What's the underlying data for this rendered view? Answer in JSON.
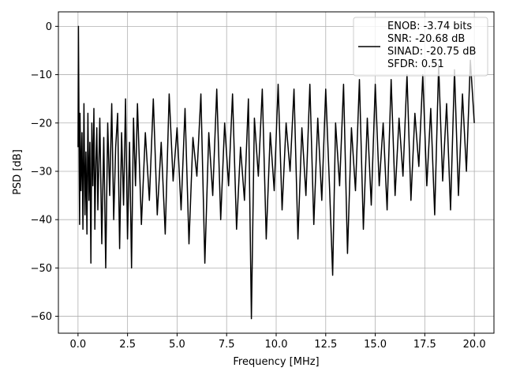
{
  "chart_data": {
    "type": "line",
    "xlabel": "Frequency [MHz]",
    "ylabel": "PSD [dB]",
    "xlim": [
      -0.99,
      20.99
    ],
    "ylim": [
      -63.5,
      3
    ],
    "x_ticks": [
      0.0,
      2.5,
      5.0,
      7.5,
      10.0,
      12.5,
      15.0,
      17.5,
      20.0
    ],
    "x_tick_labels": [
      "0.0",
      "2.5",
      "5.0",
      "7.5",
      "10.0",
      "12.5",
      "15.0",
      "17.5",
      "20.0"
    ],
    "y_ticks": [
      0,
      -10,
      -20,
      -30,
      -40,
      -50,
      -60
    ],
    "y_tick_labels": [
      "0",
      "−10",
      "−20",
      "−30",
      "−40",
      "−50",
      "−60"
    ],
    "grid": true,
    "legend_position": "top-right",
    "legend_entries": [
      "ENOB: -3.74 bits",
      "SNR: -20.68 dB",
      "SINAD: -20.75 dB",
      "SFDR: 0.51"
    ],
    "line_color": "#000000",
    "series": [
      {
        "x": [
          0,
          0.02,
          0.04,
          0.06,
          0.08,
          0.1,
          0.15,
          0.2,
          0.25,
          0.3,
          0.35,
          0.4,
          0.45,
          0.5,
          0.55,
          0.6,
          0.65,
          0.7,
          0.75,
          0.8,
          0.85,
          0.9,
          0.95,
          1.0,
          1.1,
          1.2,
          1.3,
          1.4,
          1.5,
          1.6,
          1.7,
          1.8,
          1.9,
          2.0,
          2.1,
          2.2,
          2.3,
          2.4,
          2.5,
          2.6,
          2.7,
          2.8,
          2.9,
          3.0,
          3.2,
          3.4,
          3.6,
          3.8,
          4.0,
          4.2,
          4.4,
          4.6,
          4.8,
          5.0,
          5.2,
          5.4,
          5.6,
          5.8,
          6.0,
          6.2,
          6.4,
          6.6,
          6.8,
          7.0,
          7.2,
          7.4,
          7.6,
          7.8,
          8.0,
          8.2,
          8.4,
          8.6,
          8.75,
          8.9,
          9.1,
          9.3,
          9.5,
          9.7,
          9.9,
          10.1,
          10.3,
          10.5,
          10.7,
          10.9,
          11.1,
          11.3,
          11.5,
          11.7,
          11.9,
          12.1,
          12.3,
          12.5,
          12.7,
          12.85,
          13.0,
          13.2,
          13.4,
          13.6,
          13.8,
          14.0,
          14.2,
          14.4,
          14.6,
          14.8,
          15.0,
          15.2,
          15.4,
          15.6,
          15.8,
          16.0,
          16.2,
          16.4,
          16.6,
          16.8,
          17.0,
          17.2,
          17.4,
          17.6,
          17.8,
          18.0,
          18.2,
          18.4,
          18.6,
          18.8,
          19.0,
          19.2,
          19.4,
          19.6,
          19.8,
          20.0
        ],
        "y": [
          -25,
          0,
          -14,
          -30,
          -41,
          -18,
          -34,
          -22,
          -42,
          -16,
          -39,
          -26,
          -43,
          -18,
          -36,
          -24,
          -49,
          -20,
          -33,
          -17,
          -42,
          -28,
          -21,
          -38,
          -19,
          -45,
          -23,
          -50,
          -20,
          -35,
          -16,
          -40,
          -25,
          -18,
          -46,
          -22,
          -37,
          -15,
          -44,
          -24,
          -50,
          -19,
          -33,
          -16,
          -41,
          -22,
          -36,
          -15,
          -39,
          -24,
          -43,
          -14,
          -32,
          -21,
          -38,
          -17,
          -45,
          -23,
          -31,
          -14,
          -49,
          -22,
          -35,
          -13,
          -40,
          -20,
          -33,
          -14,
          -42,
          -25,
          -36,
          -15,
          -60.5,
          -19,
          -31,
          -13,
          -44,
          -22,
          -34,
          -12,
          -38,
          -20,
          -30,
          -13,
          -44,
          -21,
          -35,
          -12,
          -41,
          -19,
          -36,
          -13,
          -34,
          -51.5,
          -20,
          -33,
          -12,
          -47,
          -21,
          -34,
          -11,
          -42,
          -19,
          -37,
          -12,
          -33,
          -20,
          -38,
          -11,
          -35,
          -19,
          -31,
          -10,
          -36,
          -18,
          -29,
          -10,
          -33,
          -17,
          -39,
          -8,
          -32,
          -16,
          -38,
          -9,
          -35,
          -14,
          -30,
          -7,
          -20
        ]
      }
    ]
  }
}
